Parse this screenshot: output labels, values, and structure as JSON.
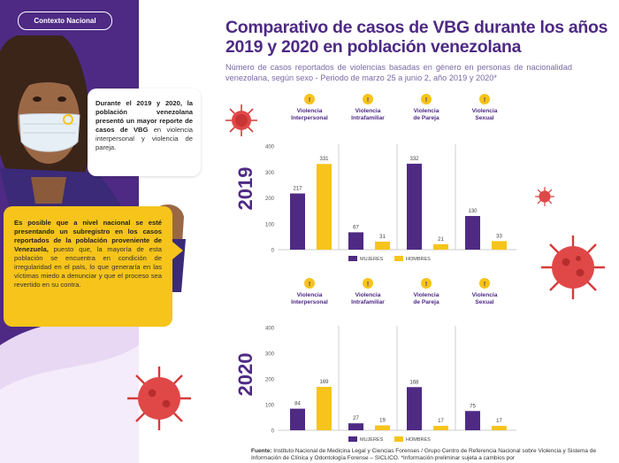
{
  "tag": "Contexto Nacional",
  "title": "Comparativo de casos de VBG durante los años 2019 y 2020 en población venezolana",
  "subtitle": "Número de casos reportados de violencias basadas en género en personas de nacionalidad venezolana, según sexo - Periodo de marzo 25 a junio 2, año 2019 y 2020*",
  "bubble1": {
    "bold": "Durante el 2019 y 2020, la población venezolana presentó un mayor reporte de casos de VBG",
    "rest": " en violencia interpersonal y violencia de pareja."
  },
  "bubble2": {
    "bold": "Es posible que a nivel nacional se esté presentando un subregistro en los casos reportados de la población proveniente de Venezuela,",
    "rest": " puesto que, la mayoría de esta población se encuentra en condición de irregularidad en el país, lo que generaría en las víctimas miedo a denunciar y que el proceso sea revertido en su contra."
  },
  "source": {
    "label": "Fuente:",
    "text": " Instituto Nacional de Medicina Legal y Ciencias Forenses / Grupo Centro de Referencia Nacional sobre Violencia y Sistema de Información de Clínica y Odontología Forense – SICLICO. *Información preliminar sujeta a cambios por"
  },
  "colors": {
    "purple": "#4e2a84",
    "yellow": "#f6c41b",
    "accent_text": "#4e2a84"
  },
  "chart_data": [
    {
      "type": "bar",
      "title": "2019",
      "categories": [
        "Violencia Interpersonal",
        "Violencia Intrafamiliar",
        "Violencia de Pareja",
        "Violencia Sexual"
      ],
      "series": [
        {
          "name": "MUJERES",
          "values": [
            217,
            67,
            332,
            130
          ],
          "color": "#4e2a84"
        },
        {
          "name": "HOMBRES",
          "values": [
            331,
            31,
            21,
            33
          ],
          "color": "#f6c41b"
        }
      ],
      "yticks": [
        0,
        100,
        200,
        300,
        400
      ],
      "ylim": [
        0,
        400
      ]
    },
    {
      "type": "bar",
      "title": "2020",
      "categories": [
        "Violencia Interpersonal",
        "Violencia Intrafamiliar",
        "Violencia de Pareja",
        "Violencia Sexual"
      ],
      "series": [
        {
          "name": "MUJERES",
          "values": [
            84,
            27,
            168,
            75
          ],
          "color": "#4e2a84"
        },
        {
          "name": "HOMBRES",
          "values": [
            169,
            19,
            17,
            17
          ],
          "color": "#f6c41b"
        }
      ],
      "yticks": [
        0,
        100,
        200,
        300,
        400
      ],
      "ylim": [
        0,
        400
      ]
    }
  ]
}
